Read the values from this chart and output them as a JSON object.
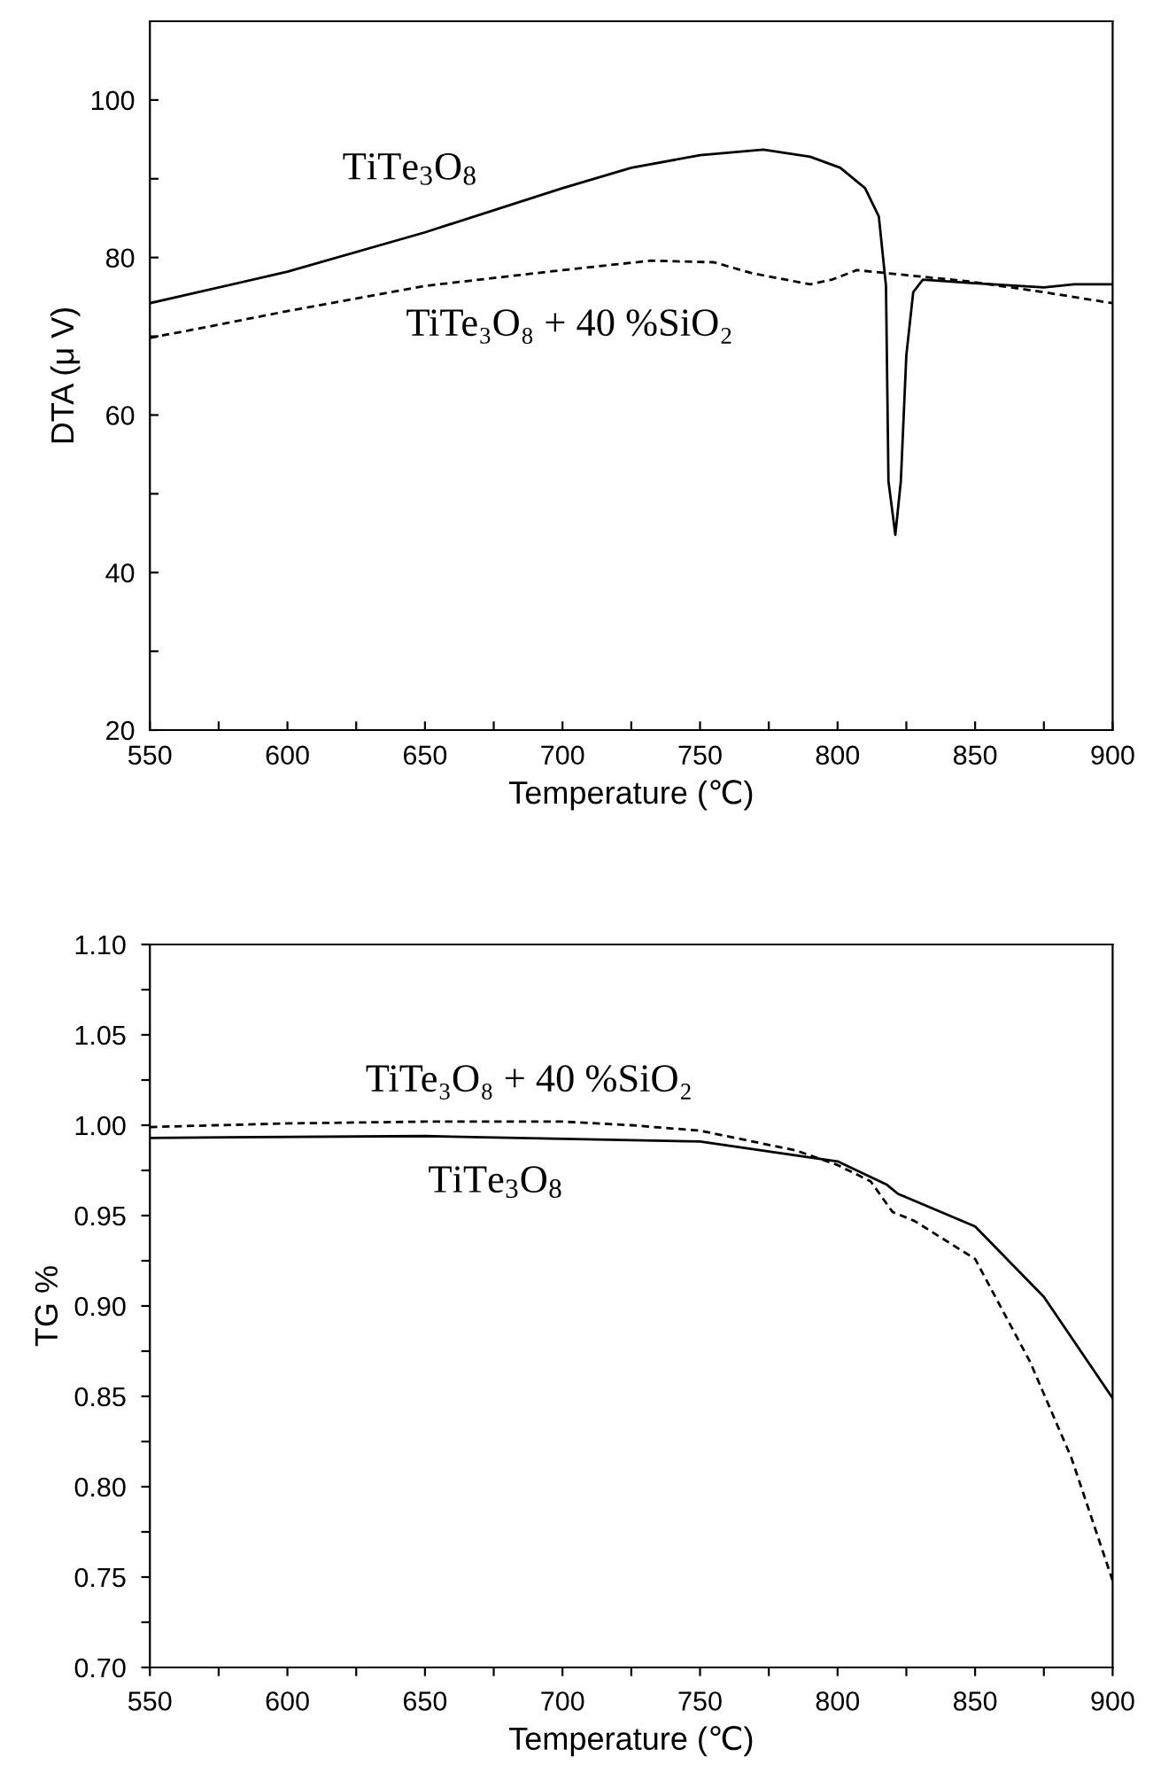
{
  "chart_data": [
    {
      "type": "line",
      "xlabel": "Temperature (℃)",
      "ylabel": "DTA (μ V)",
      "xlim": [
        550,
        900
      ],
      "ylim": [
        20,
        110
      ],
      "xticks": [
        550,
        {
          "value": 575,
          "label": null
        },
        600,
        {
          "value": 625,
          "label": null
        },
        650,
        {
          "value": 675,
          "label": null
        },
        700,
        {
          "value": 725,
          "label": null
        },
        750,
        {
          "value": 775,
          "label": null
        },
        800,
        {
          "value": 825,
          "label": null
        },
        850,
        {
          "value": 875,
          "label": null
        },
        900
      ],
      "yticks": [
        20,
        {
          "value": 30,
          "label": null
        },
        40,
        {
          "value": 50,
          "label": null
        },
        60,
        {
          "value": 70,
          "label": null
        },
        80,
        {
          "value": 90,
          "label": null
        },
        100
      ],
      "grid": false,
      "legend": false,
      "series": [
        {
          "name": "TiTe$_{3}$O$_{8}$",
          "color": "#000000",
          "line_style": "solid",
          "x": [
            550,
            600,
            650,
            700,
            725,
            750,
            773,
            790,
            801,
            810,
            815,
            817.6,
            818.5,
            821,
            823,
            825,
            827.5,
            831,
            847,
            875,
            886,
            900
          ],
          "values": [
            74.2,
            78.2,
            83.2,
            88.8,
            91.4,
            93.0,
            93.7,
            92.8,
            91.4,
            88.8,
            85.2,
            76.4,
            51.6,
            44.8,
            51.6,
            67.6,
            75.6,
            77.2,
            76.8,
            76.2,
            76.6,
            76.6
          ]
        },
        {
          "name": "TiTe₃O₈ + 40 %SiO₂",
          "color": "#000000",
          "line_style": "dashed",
          "x": [
            550,
            571,
            600,
            650,
            700,
            732,
            755,
            769,
            790,
            798,
            807,
            824,
            847,
            875,
            900
          ],
          "values": [
            69.8,
            71.2,
            73.2,
            76.4,
            78.4,
            79.6,
            79.4,
            78.0,
            76.6,
            77.2,
            78.4,
            77.8,
            77.0,
            75.6,
            74.2
          ]
        }
      ]
    },
    {
      "type": "line",
      "xlabel": "Temperature (℃)",
      "ylabel": "TG %",
      "xlim": [
        550,
        900
      ],
      "ylim": [
        0.7,
        1.1
      ],
      "xticks": [
        550,
        {
          "value": 575,
          "label": null
        },
        600,
        {
          "value": 625,
          "label": null
        },
        650,
        {
          "value": 675,
          "label": null
        },
        700,
        {
          "value": 725,
          "label": null
        },
        750,
        {
          "value": 775,
          "label": null
        },
        800,
        {
          "value": 825,
          "label": null
        },
        850,
        {
          "value": 875,
          "label": null
        },
        900
      ],
      "yticks": [
        {
          "value": 0.7,
          "label": "0.70"
        },
        {
          "value": 0.725,
          "label": null
        },
        {
          "value": 0.75,
          "label": "0.75"
        },
        {
          "value": 0.775,
          "label": null
        },
        {
          "value": 0.8,
          "label": "0.80"
        },
        {
          "value": 0.825,
          "label": null
        },
        {
          "value": 0.85,
          "label": "0.85"
        },
        {
          "value": 0.875,
          "label": null
        },
        {
          "value": 0.9,
          "label": "0.90"
        },
        {
          "value": 0.925,
          "label": null
        },
        {
          "value": 0.95,
          "label": "0.95"
        },
        {
          "value": 0.975,
          "label": null
        },
        {
          "value": 1.0,
          "label": "1.00"
        },
        {
          "value": 1.025,
          "label": null
        },
        {
          "value": 1.05,
          "label": "1.05"
        },
        {
          "value": 1.075,
          "label": null
        },
        {
          "value": 1.1,
          "label": "1.10"
        }
      ],
      "grid": false,
      "legend": false,
      "series": [
        {
          "name": "TiTe$_{3}$O$_{8}$",
          "color": "#000000",
          "line_style": "solid",
          "x": [
            550,
            650,
            750,
            800,
            818,
            822,
            850,
            875,
            900
          ],
          "values": [
            0.993,
            0.994,
            0.991,
            0.98,
            0.967,
            0.962,
            0.944,
            0.905,
            0.849
          ]
        },
        {
          "name": "TiTe₃O₈ + 40 %SiO₂",
          "color": "#000000",
          "line_style": "dashed",
          "x": [
            550,
            600,
            650,
            700,
            725,
            750,
            785,
            800,
            812,
            820,
            828,
            850,
            870,
            885,
            900
          ],
          "values": [
            0.999,
            1.001,
            1.002,
            1.002,
            1.0,
            0.997,
            0.986,
            0.978,
            0.969,
            0.952,
            0.947,
            0.926,
            0.869,
            0.816,
            0.748
          ]
        }
      ]
    }
  ]
}
